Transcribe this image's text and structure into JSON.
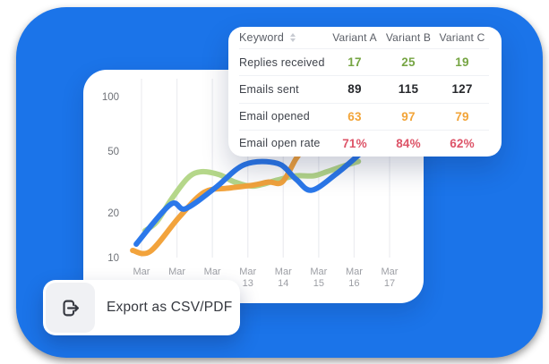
{
  "colors": {
    "backdrop_blue": "#1B74E9",
    "green": "#76A543",
    "dark": "#26282C",
    "orange": "#F2A438",
    "red": "#DD5468",
    "gridline": "#EDEEF2",
    "axis_y_text": "#6E7177",
    "axis_x_text": "#9C9EA4"
  },
  "table": {
    "columns": [
      "Keyword",
      "Variant A",
      "Variant B",
      "Variant C"
    ],
    "rows": [
      {
        "label": "Replies received",
        "values": [
          "17",
          "25",
          "19"
        ],
        "color": "green"
      },
      {
        "label": "Emails sent",
        "values": [
          "89",
          "115",
          "127"
        ],
        "color": "dark"
      },
      {
        "label": "Email opened",
        "values": [
          "63",
          "97",
          "79"
        ],
        "color": "orange"
      },
      {
        "label": "Email open rate",
        "values": [
          "71%",
          "84%",
          "62%"
        ],
        "color": "red"
      }
    ]
  },
  "export_button": {
    "label": "Export as CSV/PDF",
    "icon": "export-arrow-icon"
  },
  "chart_data": {
    "type": "line",
    "title": "",
    "xlabel": "",
    "ylabel": "",
    "y_scale": "log-like",
    "y_ticks": [
      100,
      50,
      20,
      10
    ],
    "grid": "vertical-only",
    "legend": "none",
    "x_tick_labels": [
      [
        "Mar",
        ""
      ],
      [
        "Mar",
        ""
      ],
      [
        "Mar",
        ""
      ],
      [
        "Mar",
        "13"
      ],
      [
        "Mar",
        "14"
      ],
      [
        "Mar",
        "15"
      ],
      [
        "Mar",
        "16"
      ],
      [
        "Mar",
        "17"
      ]
    ],
    "series": [
      {
        "name": "series-green",
        "color": "#B5D78A",
        "x": [
          0.1,
          0.43,
          0.86,
          1.31,
          1.69,
          2.2,
          2.63,
          3.16,
          3.84,
          4.35,
          4.85,
          5.23,
          5.74,
          6.12
        ],
        "values": [
          16,
          18,
          27,
          37,
          40,
          38.5,
          35,
          33,
          36,
          38,
          38,
          40,
          43,
          45
        ]
      },
      {
        "name": "series-orange",
        "color": "#F2A33C",
        "x": [
          -0.25,
          0.25,
          1.06,
          1.77,
          2.45,
          3.16,
          3.59,
          3.97,
          4.35,
          4.52
        ],
        "values": [
          11.6,
          11.4,
          19,
          30,
          32,
          33.5,
          35,
          35,
          46,
          50
        ]
      },
      {
        "name": "series-blue",
        "color": "#2B78EA",
        "x": [
          -0.15,
          0.81,
          1.24,
          2.07,
          2.91,
          3.84,
          4.35,
          4.8,
          5.5,
          6.12
        ],
        "values": [
          13,
          24,
          22,
          32,
          43.5,
          44,
          36.5,
          31,
          39,
          48
        ]
      }
    ]
  }
}
